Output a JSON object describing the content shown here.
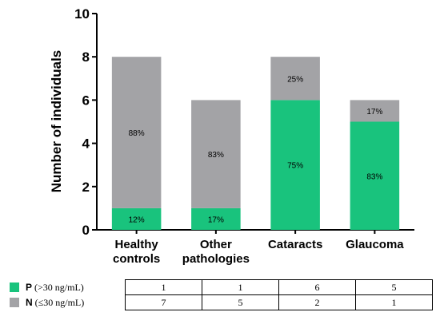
{
  "chart_data": {
    "type": "bar",
    "stacked": true,
    "categories": [
      [
        "Healthy",
        "controls"
      ],
      [
        "Other",
        "pathologies"
      ],
      [
        "Cataracts"
      ],
      [
        "Glaucoma"
      ]
    ],
    "series": [
      {
        "code": "P",
        "name": "P (>30 ng/mL)",
        "color": "#19c37d",
        "values": [
          1,
          1,
          6,
          5
        ],
        "labels": [
          "12%",
          "17%",
          "75%",
          "83%"
        ]
      },
      {
        "code": "N",
        "name": "N (≤30 ng/mL)",
        "color": "#a3a3a6",
        "values": [
          7,
          5,
          2,
          1
        ],
        "labels": [
          "88%",
          "83%",
          "25%",
          "17%"
        ]
      }
    ],
    "ylabel": "Number of individuals",
    "ylim": [
      0,
      10
    ],
    "yticks": [
      0,
      2,
      4,
      6,
      8,
      10
    ],
    "grid": false
  },
  "table": {
    "rows": [
      {
        "code": "P",
        "label": " (>30 ng/mL)",
        "values": [
          "1",
          "1",
          "6",
          "5"
        ]
      },
      {
        "code": "N",
        "label": " (≤30 ng/mL)",
        "values": [
          "7",
          "5",
          "2",
          "1"
        ]
      }
    ]
  }
}
